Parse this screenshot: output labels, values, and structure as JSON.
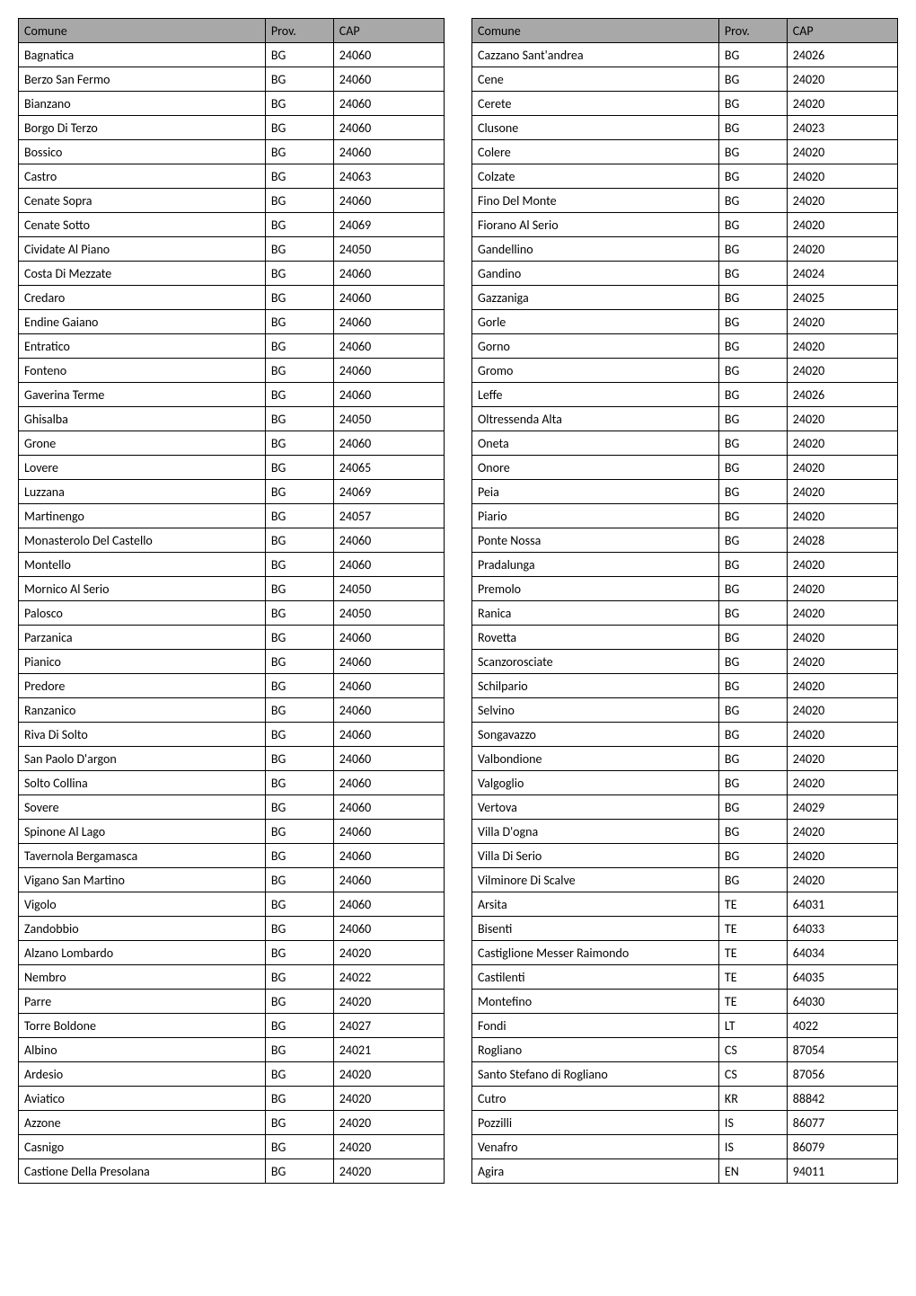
{
  "headers": {
    "comune": "Comune",
    "prov": "Prov.",
    "cap": "CAP"
  },
  "left": [
    {
      "comune": "Bagnatica",
      "prov": "BG",
      "cap": "24060"
    },
    {
      "comune": "Berzo San Fermo",
      "prov": "BG",
      "cap": "24060"
    },
    {
      "comune": "Bianzano",
      "prov": "BG",
      "cap": "24060"
    },
    {
      "comune": "Borgo Di Terzo",
      "prov": "BG",
      "cap": "24060"
    },
    {
      "comune": "Bossico",
      "prov": "BG",
      "cap": "24060"
    },
    {
      "comune": "Castro",
      "prov": "BG",
      "cap": "24063"
    },
    {
      "comune": "Cenate Sopra",
      "prov": "BG",
      "cap": "24060"
    },
    {
      "comune": "Cenate Sotto",
      "prov": "BG",
      "cap": "24069"
    },
    {
      "comune": "Cividate Al Piano",
      "prov": "BG",
      "cap": "24050"
    },
    {
      "comune": "Costa Di Mezzate",
      "prov": "BG",
      "cap": "24060"
    },
    {
      "comune": "Credaro",
      "prov": "BG",
      "cap": "24060"
    },
    {
      "comune": "Endine Gaiano",
      "prov": "BG",
      "cap": "24060"
    },
    {
      "comune": "Entratico",
      "prov": "BG",
      "cap": "24060"
    },
    {
      "comune": "Fonteno",
      "prov": "BG",
      "cap": "24060"
    },
    {
      "comune": "Gaverina Terme",
      "prov": "BG",
      "cap": "24060"
    },
    {
      "comune": "Ghisalba",
      "prov": "BG",
      "cap": "24050"
    },
    {
      "comune": "Grone",
      "prov": "BG",
      "cap": "24060"
    },
    {
      "comune": "Lovere",
      "prov": "BG",
      "cap": "24065"
    },
    {
      "comune": "Luzzana",
      "prov": "BG",
      "cap": "24069"
    },
    {
      "comune": "Martinengo",
      "prov": "BG",
      "cap": "24057"
    },
    {
      "comune": "Monasterolo Del Castello",
      "prov": "BG",
      "cap": "24060"
    },
    {
      "comune": "Montello",
      "prov": "BG",
      "cap": "24060"
    },
    {
      "comune": "Mornico Al Serio",
      "prov": "BG",
      "cap": "24050"
    },
    {
      "comune": "Palosco",
      "prov": "BG",
      "cap": "24050"
    },
    {
      "comune": "Parzanica",
      "prov": "BG",
      "cap": "24060"
    },
    {
      "comune": "Pianico",
      "prov": "BG",
      "cap": "24060"
    },
    {
      "comune": "Predore",
      "prov": "BG",
      "cap": "24060"
    },
    {
      "comune": "Ranzanico",
      "prov": "BG",
      "cap": "24060"
    },
    {
      "comune": "Riva Di Solto",
      "prov": "BG",
      "cap": "24060"
    },
    {
      "comune": "San Paolo D'argon",
      "prov": "BG",
      "cap": "24060"
    },
    {
      "comune": "Solto Collina",
      "prov": "BG",
      "cap": "24060"
    },
    {
      "comune": "Sovere",
      "prov": "BG",
      "cap": "24060"
    },
    {
      "comune": "Spinone Al Lago",
      "prov": "BG",
      "cap": "24060"
    },
    {
      "comune": "Tavernola Bergamasca",
      "prov": "BG",
      "cap": "24060"
    },
    {
      "comune": "Vigano San Martino",
      "prov": "BG",
      "cap": "24060"
    },
    {
      "comune": "Vigolo",
      "prov": "BG",
      "cap": "24060"
    },
    {
      "comune": "Zandobbio",
      "prov": "BG",
      "cap": "24060"
    },
    {
      "comune": "Alzano Lombardo",
      "prov": "BG",
      "cap": "24020"
    },
    {
      "comune": "Nembro",
      "prov": "BG",
      "cap": "24022"
    },
    {
      "comune": "Parre",
      "prov": "BG",
      "cap": "24020"
    },
    {
      "comune": "Torre Boldone",
      "prov": "BG",
      "cap": "24027"
    },
    {
      "comune": "Albino",
      "prov": "BG",
      "cap": "24021"
    },
    {
      "comune": "Ardesio",
      "prov": "BG",
      "cap": "24020"
    },
    {
      "comune": "Aviatico",
      "prov": "BG",
      "cap": "24020"
    },
    {
      "comune": "Azzone",
      "prov": "BG",
      "cap": "24020"
    },
    {
      "comune": "Casnigo",
      "prov": "BG",
      "cap": "24020"
    },
    {
      "comune": "Castione Della Presolana",
      "prov": "BG",
      "cap": "24020"
    }
  ],
  "right": [
    {
      "comune": "Cazzano Sant'andrea",
      "prov": "BG",
      "cap": "24026"
    },
    {
      "comune": "Cene",
      "prov": "BG",
      "cap": "24020"
    },
    {
      "comune": "Cerete",
      "prov": "BG",
      "cap": "24020"
    },
    {
      "comune": "Clusone",
      "prov": "BG",
      "cap": "24023"
    },
    {
      "comune": "Colere",
      "prov": "BG",
      "cap": "24020"
    },
    {
      "comune": "Colzate",
      "prov": "BG",
      "cap": "24020"
    },
    {
      "comune": "Fino Del Monte",
      "prov": "BG",
      "cap": "24020"
    },
    {
      "comune": "Fiorano Al Serio",
      "prov": "BG",
      "cap": "24020"
    },
    {
      "comune": "Gandellino",
      "prov": "BG",
      "cap": "24020"
    },
    {
      "comune": "Gandino",
      "prov": "BG",
      "cap": "24024"
    },
    {
      "comune": "Gazzaniga",
      "prov": "BG",
      "cap": "24025"
    },
    {
      "comune": "Gorle",
      "prov": "BG",
      "cap": "24020"
    },
    {
      "comune": "Gorno",
      "prov": "BG",
      "cap": "24020"
    },
    {
      "comune": "Gromo",
      "prov": "BG",
      "cap": "24020"
    },
    {
      "comune": "Leffe",
      "prov": "BG",
      "cap": "24026"
    },
    {
      "comune": "Oltressenda Alta",
      "prov": "BG",
      "cap": "24020"
    },
    {
      "comune": "Oneta",
      "prov": "BG",
      "cap": "24020"
    },
    {
      "comune": "Onore",
      "prov": "BG",
      "cap": "24020"
    },
    {
      "comune": "Peia",
      "prov": "BG",
      "cap": "24020"
    },
    {
      "comune": "Piario",
      "prov": "BG",
      "cap": "24020"
    },
    {
      "comune": "Ponte Nossa",
      "prov": "BG",
      "cap": "24028"
    },
    {
      "comune": "Pradalunga",
      "prov": "BG",
      "cap": "24020"
    },
    {
      "comune": "Premolo",
      "prov": "BG",
      "cap": "24020"
    },
    {
      "comune": "Ranica",
      "prov": "BG",
      "cap": "24020"
    },
    {
      "comune": "Rovetta",
      "prov": "BG",
      "cap": "24020"
    },
    {
      "comune": "Scanzorosciate",
      "prov": "BG",
      "cap": "24020"
    },
    {
      "comune": "Schilpario",
      "prov": "BG",
      "cap": "24020"
    },
    {
      "comune": "Selvino",
      "prov": "BG",
      "cap": "24020"
    },
    {
      "comune": "Songavazzo",
      "prov": "BG",
      "cap": "24020"
    },
    {
      "comune": "Valbondione",
      "prov": "BG",
      "cap": "24020"
    },
    {
      "comune": "Valgoglio",
      "prov": "BG",
      "cap": "24020"
    },
    {
      "comune": "Vertova",
      "prov": "BG",
      "cap": "24029"
    },
    {
      "comune": "Villa D'ogna",
      "prov": "BG",
      "cap": "24020"
    },
    {
      "comune": "Villa Di Serio",
      "prov": "BG",
      "cap": "24020"
    },
    {
      "comune": "Vilminore Di Scalve",
      "prov": "BG",
      "cap": "24020"
    },
    {
      "comune": "Arsita",
      "prov": "TE",
      "cap": "64031"
    },
    {
      "comune": "Bisenti",
      "prov": "TE",
      "cap": "64033"
    },
    {
      "comune": "Castiglione Messer Raimondo",
      "prov": "TE",
      "cap": "64034"
    },
    {
      "comune": "Castilenti",
      "prov": "TE",
      "cap": "64035"
    },
    {
      "comune": "Montefino",
      "prov": "TE",
      "cap": "64030"
    },
    {
      "comune": "Fondi",
      "prov": "LT",
      "cap": "4022"
    },
    {
      "comune": "Rogliano",
      "prov": "CS",
      "cap": "87054"
    },
    {
      "comune": "Santo Stefano di Rogliano",
      "prov": "CS",
      "cap": "87056"
    },
    {
      "comune": "Cutro",
      "prov": "KR",
      "cap": "88842"
    },
    {
      "comune": "Pozzilli",
      "prov": "IS",
      "cap": "86077"
    },
    {
      "comune": "Venafro",
      "prov": "IS",
      "cap": "86079"
    },
    {
      "comune": "Agira",
      "prov": "EN",
      "cap": "94011"
    }
  ]
}
